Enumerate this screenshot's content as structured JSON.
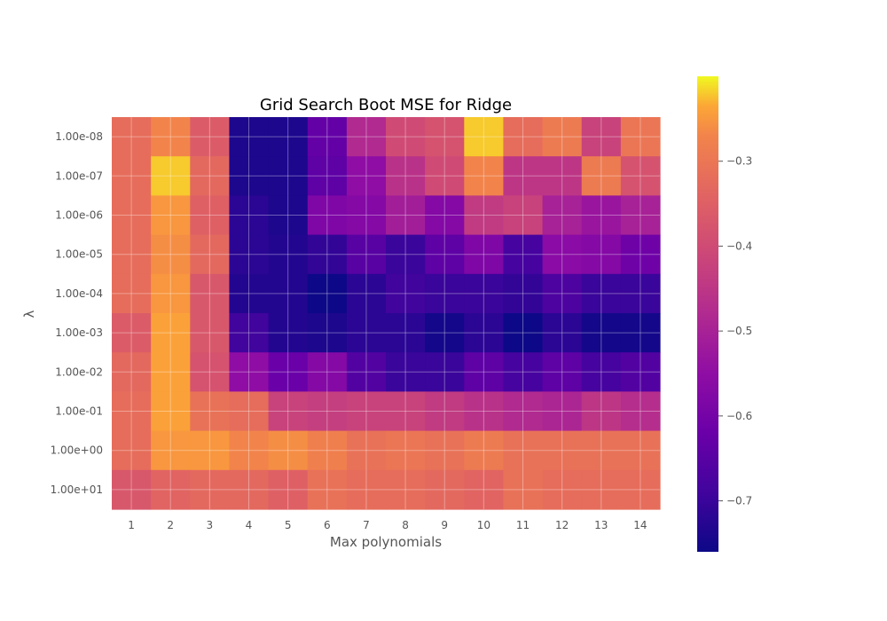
{
  "chart_data": {
    "type": "heatmap",
    "title": "Grid Search Boot MSE for Ridge",
    "xlabel": "Max polynomials",
    "ylabel": "λ",
    "x_categories": [
      "1",
      "2",
      "3",
      "4",
      "5",
      "6",
      "7",
      "8",
      "9",
      "10",
      "11",
      "12",
      "13",
      "14"
    ],
    "y_categories": [
      "1.00e-08",
      "1.00e-07",
      "1.00e-06",
      "1.00e-05",
      "1.00e-04",
      "1.00e-03",
      "1.00e-02",
      "1.00e-01",
      "1.00e+00",
      "1.00e+01"
    ],
    "values": [
      [
        -0.32,
        -0.27,
        -0.36,
        -0.74,
        -0.74,
        -0.63,
        -0.48,
        -0.4,
        -0.38,
        -0.22,
        -0.32,
        -0.29,
        -0.42,
        -0.3
      ],
      [
        -0.32,
        -0.22,
        -0.33,
        -0.74,
        -0.74,
        -0.64,
        -0.55,
        -0.46,
        -0.4,
        -0.27,
        -0.45,
        -0.45,
        -0.29,
        -0.38
      ],
      [
        -0.32,
        -0.25,
        -0.35,
        -0.72,
        -0.74,
        -0.58,
        -0.57,
        -0.51,
        -0.57,
        -0.44,
        -0.42,
        -0.5,
        -0.53,
        -0.5
      ],
      [
        -0.32,
        -0.26,
        -0.33,
        -0.72,
        -0.73,
        -0.71,
        -0.65,
        -0.7,
        -0.64,
        -0.58,
        -0.68,
        -0.56,
        -0.57,
        -0.61
      ],
      [
        -0.32,
        -0.25,
        -0.37,
        -0.73,
        -0.73,
        -0.76,
        -0.72,
        -0.69,
        -0.7,
        -0.7,
        -0.71,
        -0.67,
        -0.7,
        -0.7
      ],
      [
        -0.36,
        -0.24,
        -0.37,
        -0.69,
        -0.73,
        -0.74,
        -0.72,
        -0.72,
        -0.75,
        -0.72,
        -0.76,
        -0.72,
        -0.75,
        -0.75
      ],
      [
        -0.33,
        -0.24,
        -0.38,
        -0.55,
        -0.62,
        -0.57,
        -0.66,
        -0.7,
        -0.7,
        -0.64,
        -0.68,
        -0.64,
        -0.68,
        -0.66
      ],
      [
        -0.32,
        -0.24,
        -0.31,
        -0.32,
        -0.42,
        -0.43,
        -0.42,
        -0.42,
        -0.44,
        -0.46,
        -0.48,
        -0.49,
        -0.45,
        -0.47
      ],
      [
        -0.32,
        -0.25,
        -0.25,
        -0.27,
        -0.26,
        -0.28,
        -0.31,
        -0.3,
        -0.31,
        -0.29,
        -0.31,
        -0.31,
        -0.31,
        -0.31
      ],
      [
        -0.37,
        -0.34,
        -0.33,
        -0.33,
        -0.35,
        -0.31,
        -0.32,
        -0.32,
        -0.33,
        -0.34,
        -0.31,
        -0.32,
        -0.32,
        -0.32
      ]
    ],
    "colormap": "plasma",
    "vmin": -0.76,
    "vmax": -0.2,
    "colorbar_ticks": [
      -0.3,
      -0.4,
      -0.5,
      -0.6,
      -0.7
    ],
    "colorbar_tick_labels": [
      "−0.3",
      "−0.4",
      "−0.5",
      "−0.6",
      "−0.7"
    ],
    "grid": true
  }
}
